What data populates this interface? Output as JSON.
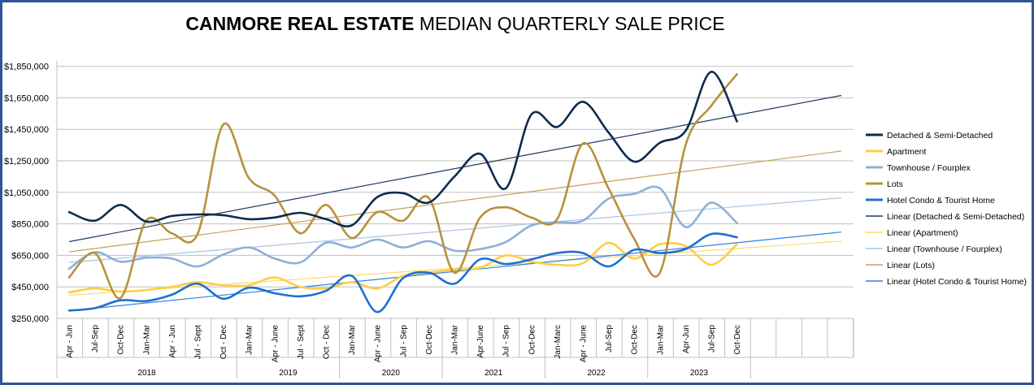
{
  "chart_data": {
    "type": "line",
    "title_bold": "CANMORE REAL ESTATE",
    "title_rest": " MEDIAN QUARTERLY SALE PRICE",
    "ylim": [
      250000,
      2000000
    ],
    "y_ticks": [
      250000,
      450000,
      650000,
      850000,
      1050000,
      1250000,
      1450000,
      1650000,
      1850000
    ],
    "y_tick_labels": [
      "$250,000",
      "$450,000",
      "$650,000",
      "$850,000",
      "$1,050,000",
      "$1,250,000",
      "$1,450,000",
      "$1,650,000",
      "$1,850,000"
    ],
    "grid": true,
    "categories": [
      "Apr - Jun",
      "Jul-Sep",
      "Oct-Dec",
      "Jan-Mar",
      "Apr - Jun",
      "Jul - Sept",
      "Oct - Dec",
      "Jan-Mar",
      "Apr - June",
      "Jul - Sept",
      "Oct - Dec",
      "Jan-Mar",
      "Apr - June",
      "Jul - Sep",
      "Oct-Dec",
      "Jan-Mar",
      "Apr-June",
      "Jul - Sep",
      "Oct-Dec",
      "Jan-Marc",
      "Apr - June",
      "Jul-Sep",
      "Oct-Dec",
      "Jan-Mar",
      "Apr-Jun",
      "Jul-Sep",
      "Oct-Dec"
    ],
    "years": [
      {
        "label": "2018",
        "start": 0,
        "span": 7
      },
      {
        "label": "2019",
        "start": 7,
        "span": 4
      },
      {
        "label": "2020",
        "start": 11,
        "span": 4
      },
      {
        "label": "2021",
        "start": 15,
        "span": 4
      },
      {
        "label": "2022",
        "start": 19,
        "span": 4
      },
      {
        "label": "2023",
        "start": 23,
        "span": 4
      }
    ],
    "extra_columns": 5,
    "legend_position": "right",
    "series": [
      {
        "name": "Detached & Semi-Detached",
        "color": "#0d2b4e",
        "values": [
          925000,
          870000,
          970000,
          865000,
          900000,
          910000,
          905000,
          880000,
          890000,
          920000,
          880000,
          840000,
          1020000,
          1045000,
          985000,
          1150000,
          1295000,
          1075000,
          1545000,
          1465000,
          1625000,
          1430000,
          1245000,
          1365000,
          1440000,
          1815000,
          1500000
        ]
      },
      {
        "name": "Apartment",
        "color": "#ffcd45",
        "values": [
          415000,
          440000,
          420000,
          430000,
          450000,
          480000,
          460000,
          460000,
          510000,
          450000,
          440000,
          480000,
          440000,
          520000,
          540000,
          560000,
          570000,
          650000,
          610000,
          590000,
          600000,
          730000,
          630000,
          720000,
          710000,
          590000,
          720000
        ]
      },
      {
        "name": "Townhouse / Fourplex",
        "color": "#8eb0d8",
        "values": [
          565000,
          670000,
          610000,
          635000,
          630000,
          580000,
          655000,
          700000,
          630000,
          605000,
          730000,
          700000,
          750000,
          700000,
          740000,
          680000,
          690000,
          735000,
          840000,
          860000,
          870000,
          1010000,
          1040000,
          1075000,
          830000,
          985000,
          855000
        ]
      },
      {
        "name": "Lots",
        "color": "#b8913c",
        "values": [
          510000,
          665000,
          380000,
          870000,
          790000,
          785000,
          1480000,
          1140000,
          1030000,
          790000,
          970000,
          760000,
          925000,
          870000,
          1015000,
          540000,
          890000,
          955000,
          890000,
          880000,
          1360000,
          1075000,
          755000,
          540000,
          1350000,
          1600000,
          1800000
        ]
      },
      {
        "name": "Hotel Condo & Tourist Home",
        "color": "#1f6fd1",
        "values": [
          300000,
          315000,
          365000,
          360000,
          400000,
          470000,
          375000,
          445000,
          410000,
          390000,
          425000,
          520000,
          290000,
          505000,
          540000,
          470000,
          625000,
          595000,
          625000,
          665000,
          665000,
          580000,
          685000,
          665000,
          690000,
          785000,
          765000
        ]
      }
    ],
    "trendlines": [
      {
        "name": "Linear (Detached & Semi-Detached)",
        "color": "#1c3a5e",
        "start": 737000,
        "end": 1665000
      },
      {
        "name": "Linear (Apartment)",
        "color": "#ffd96a",
        "start": 397000,
        "end": 740000
      },
      {
        "name": "Linear (Townhouse / Fourplex)",
        "color": "#a8c5e5",
        "start": 605000,
        "end": 1015000
      },
      {
        "name": "Linear (Lots)",
        "color": "#c4a05a",
        "start": 672000,
        "end": 1312000
      },
      {
        "name": "Linear (Hotel Condo & Tourist Home)",
        "color": "#2f80e0",
        "start": 298000,
        "end": 798000
      }
    ]
  }
}
